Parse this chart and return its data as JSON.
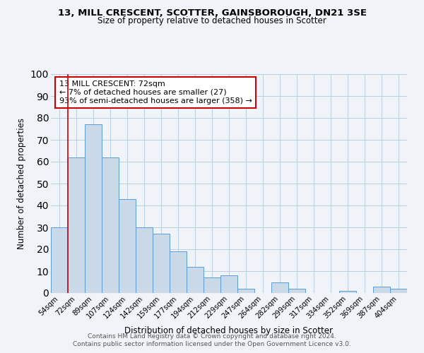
{
  "title": "13, MILL CRESCENT, SCOTTER, GAINSBOROUGH, DN21 3SE",
  "subtitle": "Size of property relative to detached houses in Scotter",
  "xlabel": "Distribution of detached houses by size in Scotter",
  "ylabel": "Number of detached properties",
  "bin_labels": [
    "54sqm",
    "72sqm",
    "89sqm",
    "107sqm",
    "124sqm",
    "142sqm",
    "159sqm",
    "177sqm",
    "194sqm",
    "212sqm",
    "229sqm",
    "247sqm",
    "264sqm",
    "282sqm",
    "299sqm",
    "317sqm",
    "334sqm",
    "352sqm",
    "369sqm",
    "387sqm",
    "404sqm"
  ],
  "bar_heights": [
    30,
    62,
    77,
    62,
    43,
    30,
    27,
    19,
    12,
    7,
    8,
    2,
    0,
    5,
    2,
    0,
    0,
    1,
    0,
    3,
    2
  ],
  "bar_color": "#c9d9e8",
  "bar_edge_color": "#5b9bd5",
  "vline_color": "#cc0000",
  "vline_x_index": 0.5,
  "ylim": [
    0,
    100
  ],
  "annotation_text": "13 MILL CRESCENT: 72sqm\n← 7% of detached houses are smaller (27)\n93% of semi-detached houses are larger (358) →",
  "annotation_box_color": "#ffffff",
  "annotation_box_edge": "#cc0000",
  "footer_line1": "Contains HM Land Registry data © Crown copyright and database right 2024.",
  "footer_line2": "Contains public sector information licensed under the Open Government Licence v3.0.",
  "bg_color": "#f0f4f8",
  "grid_color": "#b8cfe0"
}
